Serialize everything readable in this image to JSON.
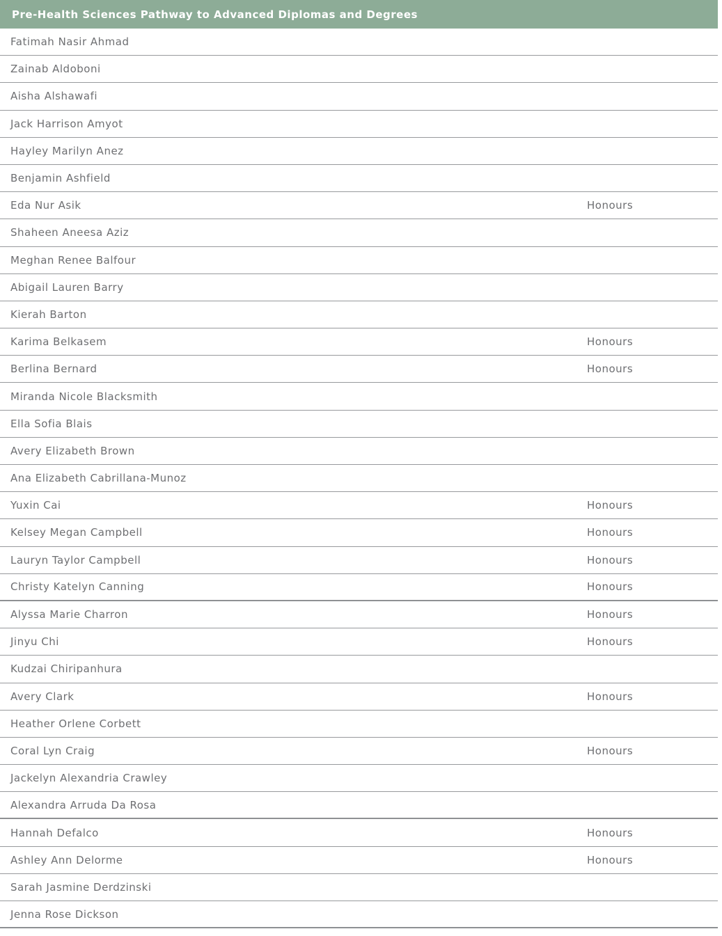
{
  "header": {
    "title": "Pre-Health Sciences Pathway to Advanced Diplomas and Degrees",
    "bg_color": "#8dac97",
    "text_color": "#ffffff"
  },
  "table": {
    "honours_label": "Honours",
    "name_text_color": "#6e6f72",
    "divider_color": "#97999c",
    "rows": [
      {
        "name": "Fatimah Nasir Ahmad",
        "honours": false
      },
      {
        "name": "Zainab Aldoboni",
        "honours": false
      },
      {
        "name": "Aisha Alshawafi",
        "honours": false
      },
      {
        "name": "Jack Harrison Amyot",
        "honours": false
      },
      {
        "name": "Hayley Marilyn Anez",
        "honours": false
      },
      {
        "name": "Benjamin Ashfield",
        "honours": false
      },
      {
        "name": "Eda Nur Asik",
        "honours": true
      },
      {
        "name": "Shaheen Aneesa Aziz",
        "honours": false
      },
      {
        "name": "Meghan Renee Balfour",
        "honours": false
      },
      {
        "name": "Abigail Lauren Barry",
        "honours": false
      },
      {
        "name": "Kierah Barton",
        "honours": false
      },
      {
        "name": "Karima Belkasem",
        "honours": true
      },
      {
        "name": "Berlina Bernard",
        "honours": true
      },
      {
        "name": "Miranda Nicole Blacksmith",
        "honours": false
      },
      {
        "name": "Ella Sofia Blais",
        "honours": false
      },
      {
        "name": "Avery Elizabeth Brown",
        "honours": false
      },
      {
        "name": "Ana Elizabeth Cabrillana-Munoz",
        "honours": false
      },
      {
        "name": "Yuxin Cai",
        "honours": true
      },
      {
        "name": "Kelsey Megan Campbell",
        "honours": true
      },
      {
        "name": "Lauryn Taylor Campbell",
        "honours": true
      },
      {
        "name": "Christy Katelyn Canning",
        "honours": true
      },
      {
        "name": "Alyssa Marie Charron",
        "honours": true
      },
      {
        "name": "Jinyu Chi",
        "honours": true
      },
      {
        "name": "Kudzai Chiripanhura",
        "honours": false
      },
      {
        "name": "Avery Clark",
        "honours": true
      },
      {
        "name": "Heather Orlene Corbett",
        "honours": false
      },
      {
        "name": "Coral Lyn Craig",
        "honours": true
      },
      {
        "name": "Jackelyn Alexandria Crawley",
        "honours": false
      },
      {
        "name": "Alexandra Arruda Da Rosa",
        "honours": false
      },
      {
        "name": "Hannah Defalco",
        "honours": true
      },
      {
        "name": "Ashley Ann Delorme",
        "honours": true
      },
      {
        "name": "Sarah Jasmine Derdzinski",
        "honours": false
      },
      {
        "name": "Jenna Rose Dickson",
        "honours": false
      }
    ]
  }
}
